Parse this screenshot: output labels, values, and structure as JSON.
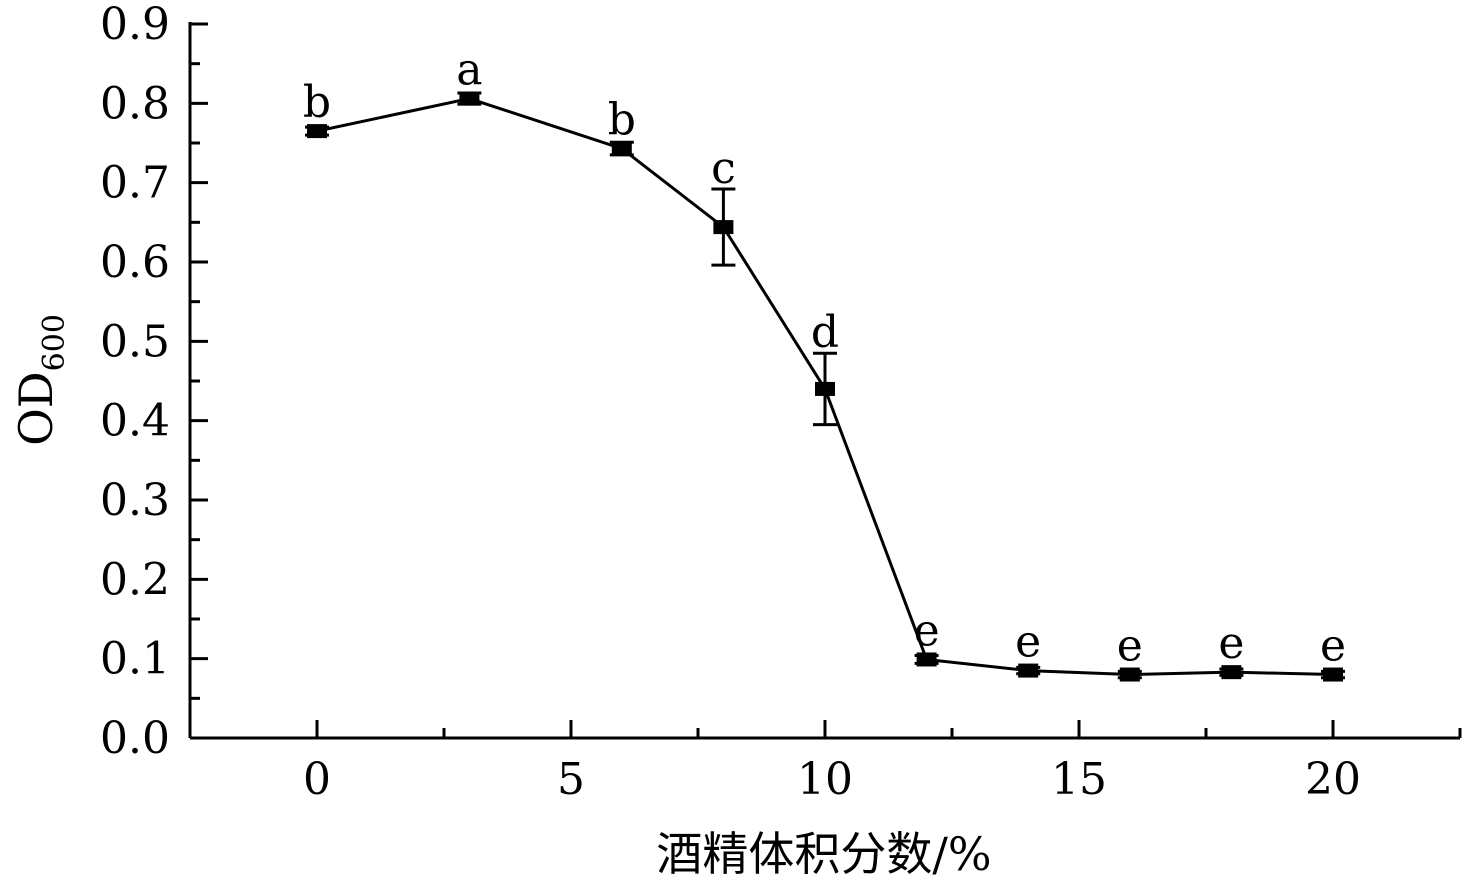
{
  "chart_data": {
    "type": "line",
    "title": "",
    "xlabel": "酒精体积分数/%",
    "ylabel": {
      "main": "OD",
      "sub": "600"
    },
    "xlim": [
      -2.5,
      22.5
    ],
    "ylim": [
      0,
      0.9
    ],
    "xticks": [
      0,
      5,
      10,
      15,
      20
    ],
    "xtick_labels": [
      "0",
      "5",
      "10",
      "15",
      "20"
    ],
    "yticks": [
      0,
      0.1,
      0.2,
      0.3,
      0.4,
      0.5,
      0.6,
      0.7,
      0.8,
      0.9
    ],
    "ytick_labels": [
      "0.0",
      "0.1",
      "0.2",
      "0.3",
      "0.4",
      "0.5",
      "0.6",
      "0.7",
      "0.8",
      "0.9"
    ],
    "grid": false,
    "legend": "none",
    "series": [
      {
        "marker": "square",
        "color": "#000000",
        "x": [
          0,
          3,
          6,
          8,
          10,
          12,
          14,
          16,
          18,
          20
        ],
        "y": [
          0.765,
          0.806,
          0.743,
          0.644,
          0.44,
          0.099,
          0.085,
          0.08,
          0.083,
          0.08
        ],
        "error": [
          0.005,
          0.007,
          0.008,
          0.048,
          0.045,
          0.005,
          0.004,
          0.004,
          0.004,
          0.004
        ],
        "labels": [
          "b",
          "a",
          "b",
          "c",
          "d",
          "e",
          "e",
          "e",
          "e",
          "e"
        ]
      }
    ]
  }
}
